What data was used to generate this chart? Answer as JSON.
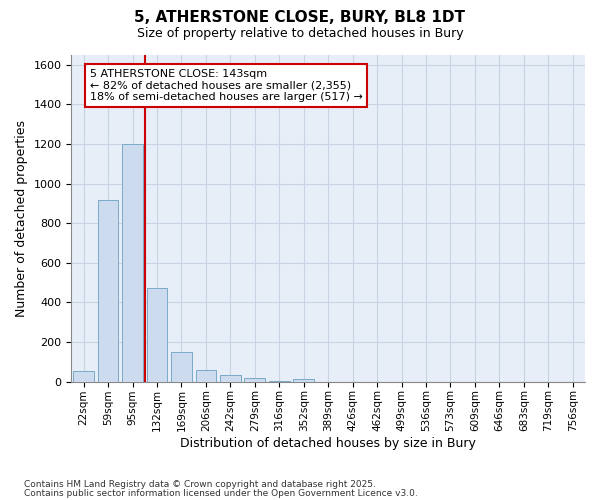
{
  "title_line1": "5, ATHERSTONE CLOSE, BURY, BL8 1DT",
  "title_line2": "Size of property relative to detached houses in Bury",
  "xlabel": "Distribution of detached houses by size in Bury",
  "ylabel": "Number of detached properties",
  "categories": [
    "22sqm",
    "59sqm",
    "95sqm",
    "132sqm",
    "169sqm",
    "206sqm",
    "242sqm",
    "279sqm",
    "316sqm",
    "352sqm",
    "389sqm",
    "426sqm",
    "462sqm",
    "499sqm",
    "536sqm",
    "573sqm",
    "609sqm",
    "646sqm",
    "683sqm",
    "719sqm",
    "756sqm"
  ],
  "values": [
    55,
    920,
    1200,
    475,
    150,
    60,
    35,
    20,
    5,
    15,
    0,
    0,
    0,
    0,
    0,
    0,
    0,
    0,
    0,
    0,
    0
  ],
  "bar_color": "#ccdcee",
  "bar_edge_color": "#7aaac8",
  "property_line_x": 2.5,
  "property_line_color": "#cc0000",
  "annotation_text": "5 ATHERSTONE CLOSE: 143sqm\n← 82% of detached houses are smaller (2,355)\n18% of semi-detached houses are larger (517) →",
  "annotation_box_edgecolor": "#cc0000",
  "annotation_box_facecolor": "white",
  "ylim": [
    0,
    1650
  ],
  "yticks": [
    0,
    200,
    400,
    600,
    800,
    1000,
    1200,
    1400,
    1600
  ],
  "grid_color": "#c8d4e4",
  "plot_bg_color": "#e8eef8",
  "fig_bg_color": "#ffffff",
  "footer_line1": "Contains HM Land Registry data © Crown copyright and database right 2025.",
  "footer_line2": "Contains public sector information licensed under the Open Government Licence v3.0.",
  "fig_width": 6.0,
  "fig_height": 5.0
}
